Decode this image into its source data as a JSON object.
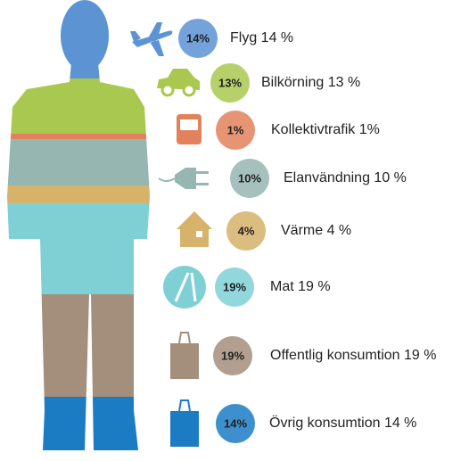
{
  "items": [
    {
      "badge": "14%",
      "label": "Flyg 14 %",
      "color": "#5b93d3"
    },
    {
      "badge": "13%",
      "label": "Bilkörning  13 %",
      "color": "#a9c850"
    },
    {
      "badge": "1%",
      "label": "Kollektivtrafik 1%",
      "color": "#e2815c"
    },
    {
      "badge": "10%",
      "label": "Elanvändning 10 %",
      "color": "#96b6b2"
    },
    {
      "badge": "4%",
      "label": "Värme 4 %",
      "color": "#d6b26a"
    },
    {
      "badge": "19%",
      "label": "Mat 19 %",
      "color": "#7fd0d5"
    },
    {
      "badge": "19%",
      "label": "Offentlig konsumtion 19 %",
      "color": "#a48e7c"
    },
    {
      "badge": "14%",
      "label": "Övrig konsumtion 14 %",
      "color": "#1b7cc4"
    }
  ]
}
